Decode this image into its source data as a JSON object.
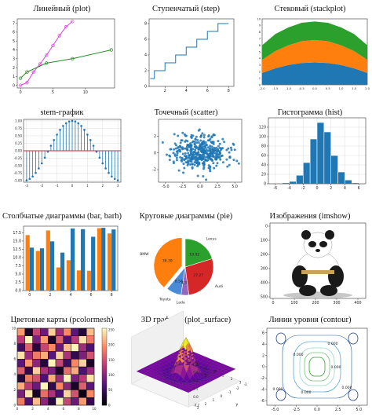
{
  "colors": {
    "blue": "#1f77b4",
    "orange": "#ff7f0e",
    "green": "#2ca02c",
    "red": "#d62728",
    "purple": "#9467bd",
    "magenta": "#dd44dd",
    "darkgreen": "#2a8a2a"
  },
  "chart_data": [
    {
      "id": "plot",
      "type": "line",
      "title": "Линейный (plot)",
      "xlim": [
        -0.5,
        14.5
      ],
      "ylim": [
        -0.3,
        7.5
      ],
      "xticks": [
        "0",
        "5",
        "10"
      ],
      "yticks": [
        "0",
        "1",
        "2",
        "3",
        "4",
        "5",
        "6",
        "7"
      ],
      "series": [
        {
          "color": "#dd44dd",
          "x": [
            0,
            1,
            2,
            3,
            4,
            5,
            6,
            7,
            8
          ],
          "y": [
            0,
            0.3,
            1.5,
            2.4,
            3.4,
            4.5,
            5.6,
            6.6,
            7.2
          ]
        },
        {
          "color": "#2a8a2a",
          "x": [
            0,
            1,
            4,
            8,
            14
          ],
          "y": [
            0.8,
            1.5,
            2.5,
            3.0,
            4.0
          ]
        }
      ]
    },
    {
      "id": "step",
      "type": "line",
      "title": "Ступенчатый (step)",
      "xlim": [
        0.5,
        8.5
      ],
      "ylim": [
        0,
        8.6
      ],
      "xticks": [
        "2",
        "4",
        "6",
        "8"
      ],
      "yticks": [
        "0",
        "2",
        "4",
        "6",
        "8"
      ],
      "x": [
        1,
        2,
        3,
        4,
        5,
        6,
        7,
        8
      ],
      "y": [
        1,
        2,
        3,
        4,
        5,
        6,
        7,
        8
      ]
    },
    {
      "id": "stackplot",
      "type": "area",
      "title": "Стековый (stackplot)",
      "xlim": [
        -2,
        2
      ],
      "ylim": [
        0,
        10
      ],
      "xticks": [
        "-2.0",
        "-1.5",
        "-1.0",
        "-0.5",
        "0.0",
        "0.5",
        "1.0",
        "1.5",
        "2.0"
      ],
      "yticks": [
        "0",
        "1",
        "2",
        "3",
        "4",
        "5",
        "6",
        "7",
        "8",
        "9",
        "10"
      ],
      "x": [
        -2,
        -1.5,
        -1,
        -0.5,
        0,
        0.5,
        1,
        1.5,
        2
      ],
      "series": [
        {
          "color": "#1f77b4",
          "values": [
            1.8,
            2.5,
            3.0,
            3.3,
            3.4,
            3.3,
            3.0,
            2.5,
            1.8
          ]
        },
        {
          "color": "#ff7f0e",
          "values": [
            2.0,
            2.6,
            3.0,
            3.3,
            3.4,
            3.3,
            3.0,
            2.6,
            2.0
          ]
        },
        {
          "color": "#2ca02c",
          "values": [
            2.2,
            2.6,
            2.7,
            2.8,
            2.8,
            2.8,
            2.7,
            2.6,
            2.2
          ]
        }
      ]
    },
    {
      "id": "stem",
      "type": "scatter",
      "title": "stem-график",
      "xlim": [
        -3.2,
        3.2
      ],
      "ylim": [
        -1.05,
        1.05
      ],
      "xticks": [
        "-3",
        "-2",
        "-1",
        "0",
        "1",
        "2",
        "3"
      ],
      "yticks": [
        "-1.00",
        "-0.75",
        "-0.50",
        "-0.25",
        "0.00",
        "0.25",
        "0.50",
        "0.75",
        "1.00"
      ],
      "x": [
        -3.0,
        -2.8,
        -2.6,
        -2.4,
        -2.2,
        -2.0,
        -1.8,
        -1.6,
        -1.4,
        -1.2,
        -1.0,
        -0.8,
        -0.6,
        -0.4,
        -0.2,
        0.0,
        0.2,
        0.4,
        0.6,
        0.8,
        1.0,
        1.2,
        1.4,
        1.6,
        1.8,
        2.0,
        2.2,
        2.4,
        2.6,
        2.8,
        3.0
      ],
      "y": [
        -0.99,
        -0.94,
        -0.86,
        -0.74,
        -0.59,
        -0.42,
        -0.23,
        -0.03,
        0.17,
        0.36,
        0.54,
        0.7,
        0.83,
        0.92,
        0.98,
        1.0,
        0.98,
        0.92,
        0.83,
        0.7,
        0.54,
        0.36,
        0.17,
        -0.03,
        -0.23,
        -0.42,
        -0.59,
        -0.74,
        -0.86,
        -0.94,
        -0.99
      ]
    },
    {
      "id": "scatter",
      "type": "scatter",
      "title": "Точечный (scatter)",
      "xlim": [
        -6,
        6
      ],
      "ylim": [
        -3.5,
        4
      ],
      "xticks": [
        "-5.0",
        "-2.5",
        "0.0",
        "2.5",
        "5.0"
      ],
      "yticks": [
        "-2",
        "0",
        "2"
      ],
      "n_points": 420,
      "mean_x": 0,
      "sd_x": 2,
      "mean_y": 0,
      "sd_y": 1
    },
    {
      "id": "hist",
      "type": "bar",
      "title": "Гистограмма (hist)",
      "xlim": [
        -7,
        7
      ],
      "ylim": [
        0,
        140
      ],
      "xticks": [
        "-6",
        "-4",
        "-2",
        "0",
        "2",
        "4",
        "6"
      ],
      "yticks": [
        "0",
        "20",
        "40",
        "60",
        "80",
        "100",
        "120"
      ],
      "bin_edges": [
        -6,
        -5,
        -4,
        -3,
        -2,
        -1,
        0,
        1,
        2,
        3,
        4,
        5,
        6
      ],
      "values": [
        1,
        2,
        5,
        18,
        45,
        95,
        130,
        110,
        60,
        25,
        8,
        2
      ]
    },
    {
      "id": "bar",
      "type": "bar",
      "title": "Столбчатые диаграммы (bar, barh)",
      "xlim": [
        -0.6,
        8.6
      ],
      "ylim": [
        0,
        19.5
      ],
      "xticks": [
        "0",
        "2",
        "4",
        "6",
        "8"
      ],
      "yticks": [
        "0.0",
        "2.5",
        "5.0",
        "7.5",
        "10.0",
        "12.5",
        "15.0",
        "17.5"
      ],
      "categories": [
        "0",
        "1",
        "2",
        "3",
        "4",
        "5",
        "6",
        "7",
        "8"
      ],
      "series": [
        {
          "color": "#ff7f0e",
          "values": [
            16.8,
            12.0,
            18.2,
            7.0,
            9.2,
            6.1,
            6.0,
            18.9,
            17.3
          ]
        },
        {
          "color": "#1f77b4",
          "values": [
            13.0,
            12.8,
            14.9,
            11.5,
            18.8,
            18.6,
            16.3,
            19.0,
            18.5
          ]
        }
      ]
    },
    {
      "id": "pie",
      "type": "pie",
      "title": "Круговые диаграммы (pie)",
      "labels": [
        "BMW",
        "Toyota",
        "Lada",
        "Audi",
        "Lexus"
      ],
      "values": [
        38.39,
        8.54,
        4.39,
        27.27,
        19.92
      ],
      "value_labels": [
        "38.39",
        "8.54",
        "4.39",
        "27.27",
        "19.92"
      ],
      "colors": [
        "#ff7f0e",
        "#4a8ad6",
        "#9467bd",
        "#d62728",
        "#2ca02c"
      ],
      "explode": [
        0.12,
        0,
        0,
        0,
        0
      ]
    },
    {
      "id": "imshow",
      "type": "table",
      "title": "Изображения (imshow)",
      "xticks": [
        "0",
        "100",
        "200",
        "300",
        "400"
      ],
      "yticks": [
        "0",
        "100",
        "200",
        "300",
        "400",
        "500"
      ]
    },
    {
      "id": "pcolormesh",
      "type": "heatmap",
      "title": "Цветовые карты (pcolormesh)",
      "xticks": [
        "0",
        "2",
        "4",
        "6",
        "8",
        "10"
      ],
      "yticks": [
        "0",
        "2",
        "4",
        "6",
        "8",
        "10"
      ],
      "colorbar_ticks": [
        "0",
        "50",
        "100",
        "150",
        "200",
        "250"
      ],
      "grid": [
        [
          180,
          60,
          220,
          100,
          30,
          250,
          140,
          80,
          200,
          40
        ],
        [
          90,
          240,
          20,
          170,
          120,
          60,
          230,
          150,
          10,
          190
        ],
        [
          210,
          130,
          80,
          250,
          40,
          190,
          100,
          20,
          160,
          70
        ],
        [
          30,
          180,
          150,
          60,
          210,
          110,
          250,
          90,
          130,
          240
        ],
        [
          160,
          40,
          230,
          120,
          90,
          20,
          170,
          210,
          60,
          110
        ],
        [
          70,
          200,
          100,
          30,
          250,
          140,
          50,
          190,
          230,
          20
        ],
        [
          240,
          110,
          180,
          210,
          70,
          230,
          120,
          40,
          90,
          150
        ],
        [
          50,
          160,
          30,
          140,
          190,
          80,
          220,
          250,
          110,
          60
        ],
        [
          130,
          250,
          90,
          200,
          20,
          160,
          60,
          130,
          240,
          180
        ],
        [
          200,
          20,
          140,
          80,
          230,
          110,
          190,
          70,
          30,
          220
        ]
      ]
    },
    {
      "id": "surface",
      "type": "heatmap",
      "title": "3D графики (plot_surface)",
      "xticks": [
        "-3",
        "-2",
        "-1",
        "0",
        "1",
        "2",
        "3"
      ],
      "yticks": [
        "-3",
        "-2",
        "-1",
        "0",
        "1",
        "2",
        "3"
      ],
      "zticks": [
        "-0.2",
        "0.0",
        "0.2",
        "0.4",
        "0.6",
        "0.8"
      ],
      "axis_labels": [
        "x",
        "y",
        "z"
      ]
    },
    {
      "id": "contour",
      "type": "line",
      "title": "Линии уровня (contour)",
      "xticks": [
        "-5.0",
        "-2.5",
        "0.0",
        "2.5",
        "5.0"
      ],
      "yticks": [
        "-6",
        "-4",
        "-2",
        "0",
        "2",
        "4",
        "6"
      ],
      "level_labels": [
        "0.000",
        "0.000",
        "0.000",
        "0.000",
        "0.000",
        "0.000"
      ]
    }
  ]
}
